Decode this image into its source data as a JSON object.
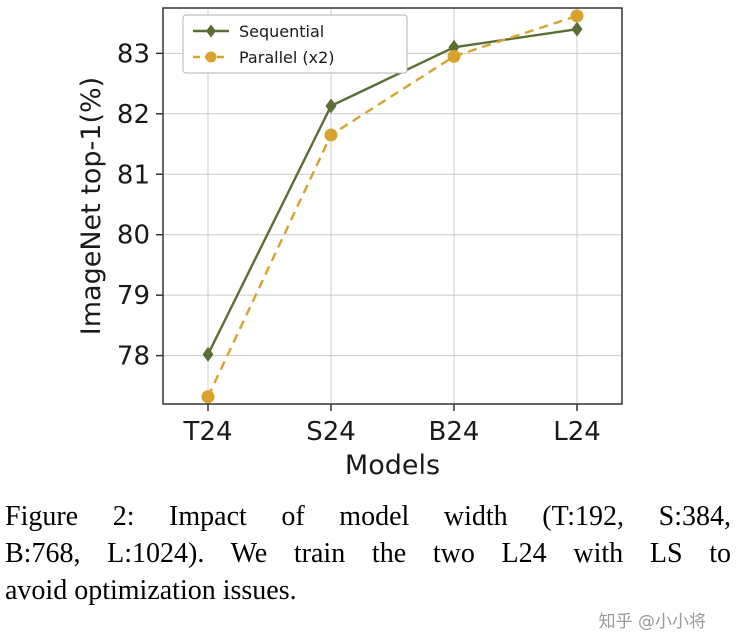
{
  "chart_data": {
    "type": "line",
    "x": [
      "T24",
      "S24",
      "B24",
      "L24"
    ],
    "series": [
      {
        "name": "Sequential",
        "values": [
          78.02,
          82.13,
          83.1,
          83.4
        ],
        "color": "#5a6e35",
        "dash": "solid",
        "marker": "diamond"
      },
      {
        "name": "Parallel (x2)",
        "values": [
          77.32,
          81.65,
          82.95,
          83.62
        ],
        "color": "#d8a22e",
        "dash": "dashed",
        "marker": "circle"
      }
    ],
    "xlabel": "Models",
    "ylabel": "ImageNet top-1(%)",
    "yticks": [
      78,
      79,
      80,
      81,
      82,
      83
    ],
    "ylim": [
      77.2,
      83.75
    ],
    "grid": true,
    "grid_color": "#cccccc",
    "legend_position": "top-left"
  },
  "caption": {
    "lines": [
      "Figure 2:  Impact of model width (T:192, S:384,",
      "B:768, L:1024).  We train the two L24 with LS to",
      "avoid optimization issues."
    ],
    "full_text": "Figure 2: Impact of model width (T:192, S:384, B:768, L:1024). We train the two L24 with LS to avoid optimization issues."
  },
  "watermark": "知乎 @小小将"
}
